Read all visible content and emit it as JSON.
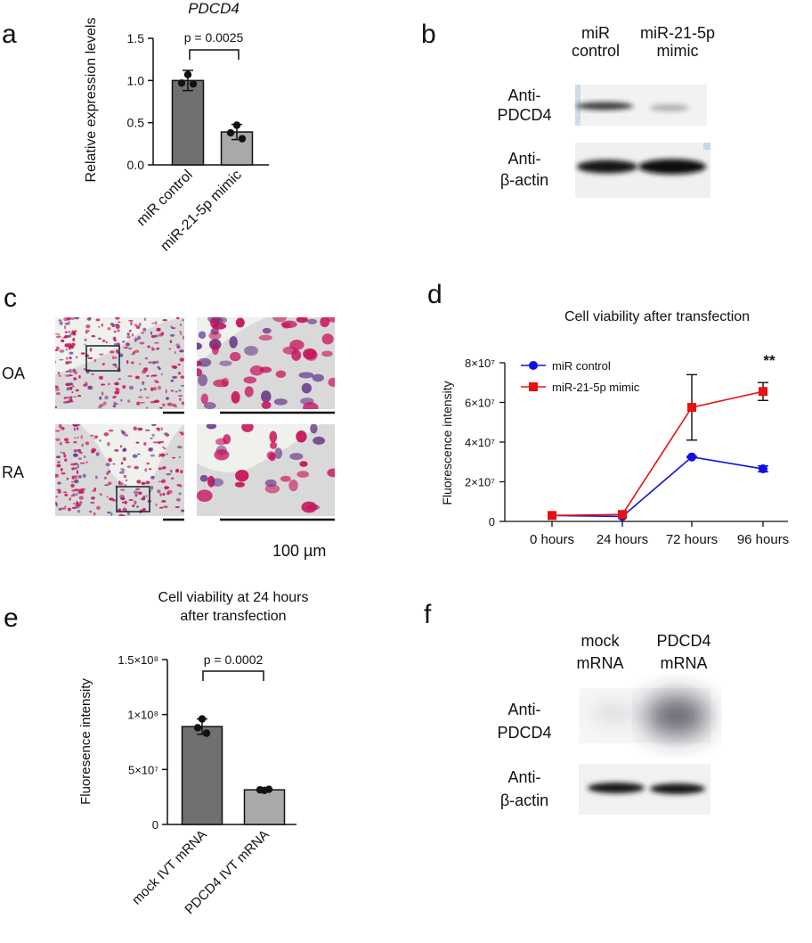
{
  "figure": {
    "panels": {
      "a": {
        "letter": "a",
        "title": "PDCD4",
        "ylabel": "Relative expression levels",
        "yticks": [
          "0.0",
          "0.5",
          "1.0",
          "1.5"
        ],
        "pvalue": "p = 0.0025",
        "bar_color": "#707070"
      },
      "b": {
        "letter": "b",
        "col_labels": [
          {
            "line1": "miR",
            "line2": "control"
          },
          {
            "line1": "miR-21-5p",
            "line2": "mimic"
          }
        ],
        "row_labels": [
          {
            "line1": "Anti-",
            "line2": "PDCD4"
          },
          {
            "line1": "Anti-",
            "line2": "β-actin"
          }
        ],
        "band_color": "#1c1c1c"
      },
      "c": {
        "letter": "c",
        "row_labels": [
          "OA",
          "RA"
        ],
        "scale_label": "100 µm",
        "stain_color": "#c8105a",
        "nucleus_color": "#6a3a8a"
      },
      "d": {
        "letter": "d",
        "yticks": [
          "0",
          "2×10⁷",
          "4×10⁷",
          "6×10⁷",
          "8×10⁷"
        ],
        "significance": "**",
        "colors": {
          "control": "#1010e0",
          "mimic": "#e81010"
        }
      },
      "e": {
        "letter": "e",
        "title_line1": "Cell viability at 24 hours",
        "title_line2": "after transfection",
        "yticks": [
          "0",
          "5×10⁷",
          "1×10⁸",
          "1.5×10⁸"
        ],
        "pvalue": "p = 0.0002",
        "bar_color": "#707070"
      },
      "f": {
        "letter": "f",
        "col_labels": [
          {
            "line1": "mock",
            "line2": "mRNA"
          },
          {
            "line1": "PDCD4",
            "line2": "mRNA"
          }
        ],
        "row_labels": [
          {
            "line1": "Anti-",
            "line2": "PDCD4"
          },
          {
            "line1": "Anti-",
            "line2": "β-actin"
          }
        ]
      }
    }
  },
  "chart_data": [
    {
      "panel": "a",
      "type": "bar",
      "title": "PDCD4",
      "categories": [
        "miR control",
        "miR-21-5p mimic"
      ],
      "values": [
        1.0,
        0.39
      ],
      "errors": [
        0.12,
        0.09
      ],
      "points": [
        [
          1.07,
          0.97,
          0.96
        ],
        [
          0.47,
          0.38,
          0.31
        ]
      ],
      "xlabel": "",
      "ylabel": "Relative expression levels",
      "ylim": [
        0,
        1.5
      ],
      "annotation": "p = 0.0025"
    },
    {
      "panel": "d",
      "type": "line",
      "title": "Cell viability after transfection",
      "x": [
        "0 hours",
        "24 hours",
        "72 hours",
        "96 hours"
      ],
      "series": [
        {
          "name": "miR control",
          "values": [
            3000000.0,
            2500000.0,
            32500000.0,
            26500000.0
          ],
          "errors": [
            0,
            0,
            300000.0,
            1500000.0
          ]
        },
        {
          "name": "miR-21-5p mimic",
          "values": [
            3000000.0,
            3500000.0,
            57500000.0,
            65500000.0
          ],
          "errors": [
            0,
            0,
            16500000.0,
            4500000.0
          ]
        }
      ],
      "xlabel": "",
      "ylabel": "Fluorescence intensity",
      "ylim": [
        0,
        80000000.0
      ],
      "annotation": "**",
      "legend": "top-left"
    },
    {
      "panel": "e",
      "type": "bar",
      "title": "Cell viability at 24 hours after transfection",
      "categories": [
        "mock IVT mRNA",
        "PDCD4 IVT mRNA"
      ],
      "values": [
        89000000.0,
        31500000.0
      ],
      "errors": [
        7000000.0,
        0
      ],
      "points": [
        [
          96000000.0,
          88000000.0,
          83000000.0
        ],
        [
          31000000.0,
          31500000.0,
          32000000.0
        ]
      ],
      "xlabel": "",
      "ylabel": "Fluoresence intensity",
      "ylim": [
        0,
        150000000.0
      ],
      "annotation": "p = 0.0002"
    }
  ]
}
